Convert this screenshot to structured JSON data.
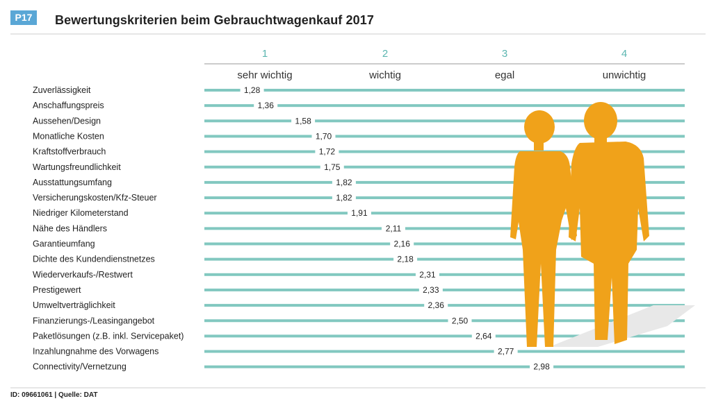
{
  "badge": "P17",
  "title": "Bewertungskriterien beim Gebrauchtwagenkauf 2017",
  "footer": "ID: 09661061 | Quelle: DAT",
  "colors": {
    "accent_blue": "#5aa7d6",
    "teal": "#82c8c0",
    "orange": "#f0a21a"
  },
  "chart_data": {
    "type": "dot-on-line",
    "scale_numbers": [
      "1",
      "2",
      "3",
      "4"
    ],
    "scale_labels": [
      "sehr wichtig",
      "wichtig",
      "egal",
      "unwichtig"
    ],
    "xlim": [
      1,
      4
    ],
    "rows": [
      {
        "label": "Zuverlässigkeit",
        "value": 1.28,
        "text": "1,28"
      },
      {
        "label": "Anschaffungspreis",
        "value": 1.36,
        "text": "1,36"
      },
      {
        "label": "Aussehen/Design",
        "value": 1.58,
        "text": "1,58"
      },
      {
        "label": "Monatliche Kosten",
        "value": 1.7,
        "text": "1,70"
      },
      {
        "label": "Kraftstoffverbrauch",
        "value": 1.72,
        "text": "1,72"
      },
      {
        "label": "Wartungsfreundlichkeit",
        "value": 1.75,
        "text": "1,75"
      },
      {
        "label": "Ausstattungsumfang",
        "value": 1.82,
        "text": "1,82"
      },
      {
        "label": "Versicherungskosten/Kfz-Steuer",
        "value": 1.82,
        "text": "1,82"
      },
      {
        "label": "Niedriger Kilometerstand",
        "value": 1.91,
        "text": "1,91"
      },
      {
        "label": "Nähe des Händlers",
        "value": 2.11,
        "text": "2,11"
      },
      {
        "label": "Garantieumfang",
        "value": 2.16,
        "text": "2,16"
      },
      {
        "label": "Dichte des Kundendienstnetzes",
        "value": 2.18,
        "text": "2,18"
      },
      {
        "label": "Wiederverkaufs-/Restwert",
        "value": 2.31,
        "text": "2,31"
      },
      {
        "label": "Prestigewert",
        "value": 2.33,
        "text": "2,33"
      },
      {
        "label": "Umweltverträglichkeit",
        "value": 2.36,
        "text": "2,36"
      },
      {
        "label": "Finanzierungs-/Leasingangebot",
        "value": 2.5,
        "text": "2,50"
      },
      {
        "label": "Paketlösungen (z.B. inkl. Servicepaket)",
        "value": 2.64,
        "text": "2,64"
      },
      {
        "label": "Inzahlungnahme des Vorwagens",
        "value": 2.77,
        "text": "2,77"
      },
      {
        "label": "Connectivity/Vernetzung",
        "value": 2.98,
        "text": "2,98"
      }
    ]
  }
}
